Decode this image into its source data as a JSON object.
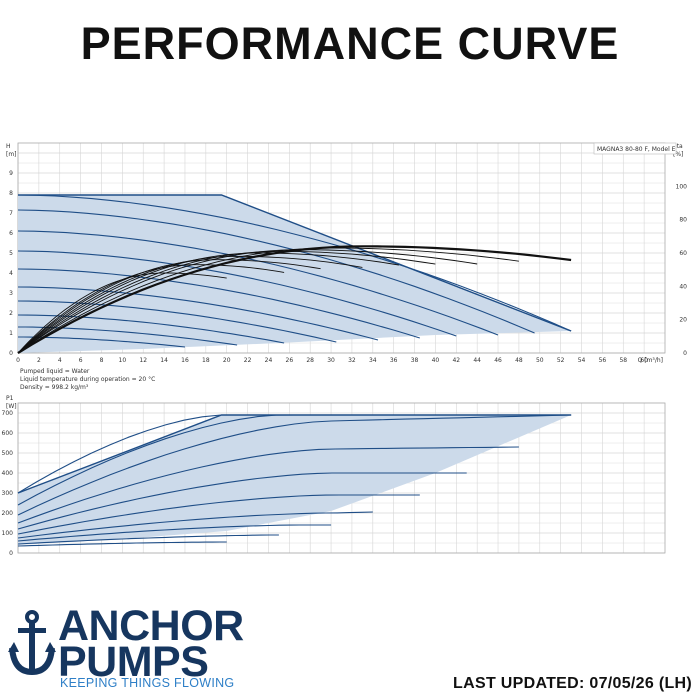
{
  "page": {
    "title": "PERFORMANCE CURVE",
    "last_updated": "LAST UPDATED: 07/05/26 (LH)"
  },
  "brand": {
    "line1": "ANCHOR",
    "line2": "PUMPS",
    "tagline": "KEEPING THINGS FLOWING",
    "color_primary": "#16365f",
    "color_accent": "#2e7fc7",
    "icon": "anchor-icon"
  },
  "chart_data": [
    {
      "type": "line",
      "model_label": "MAGNA3 80-80 F, Model E",
      "ylabel": "H",
      "yunit": "[m]",
      "y2label": "eta",
      "y2unit": "[%]",
      "xlabel": "Q [m³/h]",
      "xlim": [
        0,
        62
      ],
      "ylim": [
        0,
        10
      ],
      "y2lim": [
        0,
        120
      ],
      "xticks": [
        0,
        2,
        4,
        6,
        8,
        10,
        12,
        14,
        16,
        18,
        20,
        22,
        24,
        26,
        28,
        30,
        32,
        34,
        36,
        38,
        40,
        42,
        44,
        46,
        48,
        50,
        52,
        54,
        56,
        58,
        60
      ],
      "yticks": [
        0,
        1,
        2,
        3,
        4,
        5,
        6,
        7,
        8,
        9
      ],
      "y2ticks": [
        0,
        20,
        40,
        60,
        80,
        100
      ],
      "grid": true,
      "notes": [
        "Pumped liquid = Water",
        "Liquid temperature during operation = 20 °C",
        "Density = 998.2 kg/m³"
      ],
      "envelope": {
        "x": [
          0,
          19.5,
          53,
          40,
          25,
          12,
          0
        ],
        "y": [
          7.9,
          7.9,
          1.1,
          0.9,
          0.5,
          0.2,
          0
        ]
      },
      "speed_curves": [
        {
          "h0": 7.9,
          "qmax": 53,
          "hend": 1.1
        },
        {
          "h0": 7.15,
          "qmax": 49.5,
          "hend": 1.0
        },
        {
          "h0": 6.1,
          "qmax": 46,
          "hend": 0.9
        },
        {
          "h0": 5.1,
          "qmax": 42,
          "hend": 0.85
        },
        {
          "h0": 4.2,
          "qmax": 38.5,
          "hend": 0.75
        },
        {
          "h0": 3.3,
          "qmax": 34.5,
          "hend": 0.65
        },
        {
          "h0": 2.6,
          "qmax": 30.5,
          "hend": 0.55
        },
        {
          "h0": 1.9,
          "qmax": 25.5,
          "hend": 0.5
        },
        {
          "h0": 1.3,
          "qmax": 21,
          "hend": 0.4
        },
        {
          "h0": 0.8,
          "qmax": 16,
          "hend": 0.3
        }
      ],
      "efficiency_curves": [
        {
          "qmax": 53,
          "peak": 64,
          "peak_q": 33
        },
        {
          "qmax": 48,
          "peak": 63,
          "peak_q": 30
        },
        {
          "qmax": 44,
          "peak": 62,
          "peak_q": 27
        },
        {
          "qmax": 40,
          "peak": 61,
          "peak_q": 25
        },
        {
          "qmax": 36.5,
          "peak": 60,
          "peak_q": 23
        },
        {
          "qmax": 33,
          "peak": 58,
          "peak_q": 21
        },
        {
          "qmax": 29,
          "peak": 56,
          "peak_q": 19
        },
        {
          "qmax": 25.5,
          "peak": 53,
          "peak_q": 17
        },
        {
          "qmax": 20,
          "peak": 48,
          "peak_q": 14
        }
      ]
    },
    {
      "type": "line",
      "ylabel": "P1",
      "yunit": "[W]",
      "xlim": [
        0,
        62
      ],
      "ylim": [
        0,
        750
      ],
      "yticks": [
        0,
        100,
        200,
        300,
        400,
        500,
        600,
        700
      ],
      "grid": true,
      "envelope": {
        "x": [
          0,
          19.5,
          53,
          40,
          30,
          20,
          10,
          0
        ],
        "y": [
          300,
          690,
          690,
          400,
          210,
          110,
          70,
          40
        ]
      },
      "power_curves": [
        {
          "p0": 300,
          "pmax_q": 19.5,
          "pmax": 690,
          "qend": 53,
          "pend": 690
        },
        {
          "p0": 240,
          "pmax_q": 25,
          "pmax": 690,
          "qend": 53,
          "pend": 690
        },
        {
          "p0": 190,
          "pmax_q": 30,
          "pmax": 660,
          "qend": 53,
          "pend": 690
        },
        {
          "p0": 150,
          "pmax_q": 30,
          "pmax": 520,
          "qend": 48,
          "pend": 530
        },
        {
          "p0": 120,
          "pmax_q": 30,
          "pmax": 400,
          "qend": 43,
          "pend": 400
        },
        {
          "p0": 95,
          "pmax_q": 30,
          "pmax": 290,
          "qend": 38.5,
          "pend": 290
        },
        {
          "p0": 75,
          "pmax_q": 30,
          "pmax": 200,
          "qend": 34,
          "pend": 205
        },
        {
          "p0": 60,
          "pmax_q": 27,
          "pmax": 140,
          "qend": 30,
          "pend": 140
        },
        {
          "p0": 45,
          "pmax_q": 25,
          "pmax": 90,
          "qend": 25,
          "pend": 90
        },
        {
          "p0": 35,
          "pmax_q": 20,
          "pmax": 55,
          "qend": 20,
          "pend": 55
        }
      ]
    }
  ]
}
